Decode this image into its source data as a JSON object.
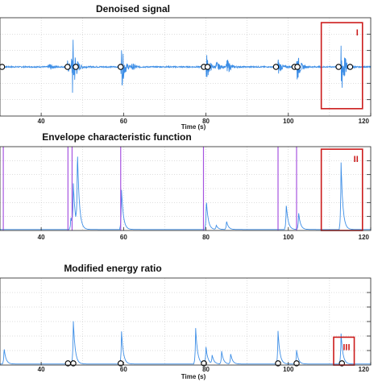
{
  "chart_data": [
    {
      "type": "line",
      "title": "Denoised signal",
      "xlabel": "Time (s)",
      "ylabel": "",
      "xlim": [
        30,
        120
      ],
      "xticks": [
        40,
        60,
        80,
        100,
        120
      ],
      "ylim": [
        -1,
        1
      ],
      "grid": true,
      "line_color": "#3d8ee6",
      "annotation": {
        "label": "I",
        "x_range": [
          108,
          118
        ],
        "y_range": [
          -0.85,
          0.9
        ],
        "color": "#cc1b1b"
      },
      "bursts": [
        {
          "t": 41.8,
          "amp": 0.1
        },
        {
          "t": 46.3,
          "amp": 0.15
        },
        {
          "t": 47.5,
          "amp": 0.8
        },
        {
          "t": 59.5,
          "amp": 0.45
        },
        {
          "t": 62.0,
          "amp": 0.08
        },
        {
          "t": 80.0,
          "amp": 0.35
        },
        {
          "t": 82.5,
          "amp": 0.12
        },
        {
          "t": 85.0,
          "amp": 0.2
        },
        {
          "t": 97.5,
          "amp": 0.18
        },
        {
          "t": 102.0,
          "amp": 0.38
        },
        {
          "t": 112.8,
          "amp": 0.78
        }
      ],
      "markers_x": [
        30.5,
        46.4,
        48.4,
        59.3,
        79.5,
        80.4,
        97.0,
        101.5,
        102.2,
        112.2,
        115.0
      ]
    },
    {
      "type": "line",
      "title": "Envelope characteristic function",
      "xlabel": "",
      "ylabel": "",
      "xlim": [
        30,
        120
      ],
      "xticks": [
        40,
        60,
        80,
        100,
        120
      ],
      "ylim": [
        0,
        1
      ],
      "grid": true,
      "line_color": "#3d8ee6",
      "vline_color": "#a654e0",
      "annotation": {
        "label": "II",
        "x_range": [
          108,
          118
        ],
        "y_range": [
          0.0,
          0.97
        ],
        "color": "#cc1b1b"
      },
      "vlines_x": [
        30.8,
        46.5,
        47.5,
        59.3,
        79.4,
        97.5,
        102.0
      ],
      "peaks": [
        {
          "t": 47.2,
          "amp": 0.15
        },
        {
          "t": 47.8,
          "amp": 0.52
        },
        {
          "t": 48.8,
          "amp": 0.88
        },
        {
          "t": 59.5,
          "amp": 0.48
        },
        {
          "t": 80.1,
          "amp": 0.35
        },
        {
          "t": 82.5,
          "amp": 0.05
        },
        {
          "t": 85.0,
          "amp": 0.1
        },
        {
          "t": 99.5,
          "amp": 0.3
        },
        {
          "t": 102.5,
          "amp": 0.2
        },
        {
          "t": 112.8,
          "amp": 0.8
        }
      ]
    },
    {
      "type": "line",
      "title": "Modified energy ratio",
      "xlabel": "Time (s)",
      "ylabel": "",
      "xlim": [
        30,
        120
      ],
      "xticks": [
        40,
        60,
        80,
        100,
        120
      ],
      "ylim": [
        0,
        1
      ],
      "grid": true,
      "line_color": "#3d8ee6",
      "annotation": {
        "label": "III",
        "x_range": [
          111,
          116
        ],
        "y_range": [
          0.0,
          0.32
        ],
        "color": "#cc1b1b"
      },
      "peaks": [
        {
          "t": 31.0,
          "amp": 0.18
        },
        {
          "t": 47.8,
          "amp": 0.5
        },
        {
          "t": 59.5,
          "amp": 0.38
        },
        {
          "t": 77.5,
          "amp": 0.42
        },
        {
          "t": 80.0,
          "amp": 0.2
        },
        {
          "t": 81.5,
          "amp": 0.1
        },
        {
          "t": 83.8,
          "amp": 0.15
        },
        {
          "t": 86.0,
          "amp": 0.12
        },
        {
          "t": 97.5,
          "amp": 0.38
        },
        {
          "t": 102.0,
          "amp": 0.16
        },
        {
          "t": 112.8,
          "amp": 0.35
        }
      ],
      "markers_x": [
        46.5,
        47.8,
        59.3,
        79.5,
        97.5,
        102.0,
        113.0
      ]
    }
  ]
}
